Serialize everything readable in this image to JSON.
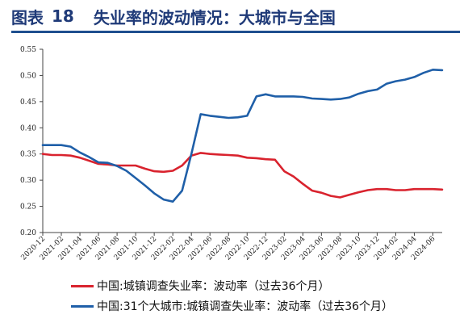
{
  "figure": {
    "label": "图表",
    "number": "18",
    "title": "失业率的波动情况：大城市与全国"
  },
  "chart_data": {
    "type": "line",
    "x": [
      "2020-12",
      "2021-01",
      "2021-02",
      "2021-03",
      "2021-04",
      "2021-05",
      "2021-06",
      "2021-07",
      "2021-08",
      "2021-09",
      "2021-10",
      "2021-11",
      "2021-12",
      "2022-01",
      "2022-02",
      "2022-03",
      "2022-04",
      "2022-05",
      "2022-06",
      "2022-07",
      "2022-08",
      "2022-09",
      "2022-10",
      "2022-11",
      "2022-12",
      "2023-01",
      "2023-02",
      "2023-03",
      "2023-04",
      "2023-05",
      "2023-06",
      "2023-07",
      "2023-08",
      "2023-09",
      "2023-10",
      "2023-11",
      "2023-12",
      "2024-01",
      "2024-02",
      "2024-03",
      "2024-04",
      "2024-05",
      "2024-06",
      "2024-07"
    ],
    "x_tick_labels": [
      "2020-12",
      "2021-02",
      "2021-04",
      "2021-06",
      "2021-08",
      "2021-10",
      "2021-12",
      "2022-02",
      "2022-04",
      "2022-06",
      "2022-08",
      "2022-10",
      "2022-12",
      "2023-02",
      "2023-04",
      "2023-06",
      "2023-08",
      "2023-10",
      "2023-12",
      "2024-02",
      "2024-04",
      "2024-06"
    ],
    "y_ticks": [
      "0.20",
      "0.25",
      "0.30",
      "0.35",
      "0.40",
      "0.45",
      "0.50",
      "0.55"
    ],
    "ylim": [
      0.2,
      0.55
    ],
    "grid": false,
    "legend_position": "bottom",
    "series": [
      {
        "name": "中国:城镇调查失业率：波动率（过去36个月）",
        "color": "#d9232e",
        "values": [
          0.35,
          0.348,
          0.348,
          0.347,
          0.343,
          0.337,
          0.331,
          0.33,
          0.328,
          0.328,
          0.328,
          0.322,
          0.317,
          0.316,
          0.318,
          0.328,
          0.347,
          0.352,
          0.35,
          0.349,
          0.348,
          0.347,
          0.343,
          0.342,
          0.34,
          0.339,
          0.317,
          0.307,
          0.293,
          0.28,
          0.276,
          0.27,
          0.267,
          0.272,
          0.277,
          0.281,
          0.283,
          0.283,
          0.281,
          0.281,
          0.283,
          0.283,
          0.283,
          0.282
        ]
      },
      {
        "name": "中国:31个大城市:城镇调查失业率：波动率（过去36个月）",
        "color": "#1f5fa8",
        "values": [
          0.367,
          0.367,
          0.367,
          0.364,
          0.353,
          0.344,
          0.334,
          0.333,
          0.327,
          0.318,
          0.304,
          0.29,
          0.275,
          0.263,
          0.259,
          0.28,
          0.35,
          0.426,
          0.423,
          0.421,
          0.419,
          0.42,
          0.423,
          0.46,
          0.464,
          0.46,
          0.46,
          0.46,
          0.459,
          0.456,
          0.455,
          0.454,
          0.455,
          0.458,
          0.465,
          0.47,
          0.473,
          0.484,
          0.489,
          0.492,
          0.497,
          0.505,
          0.511,
          0.51
        ]
      }
    ]
  }
}
